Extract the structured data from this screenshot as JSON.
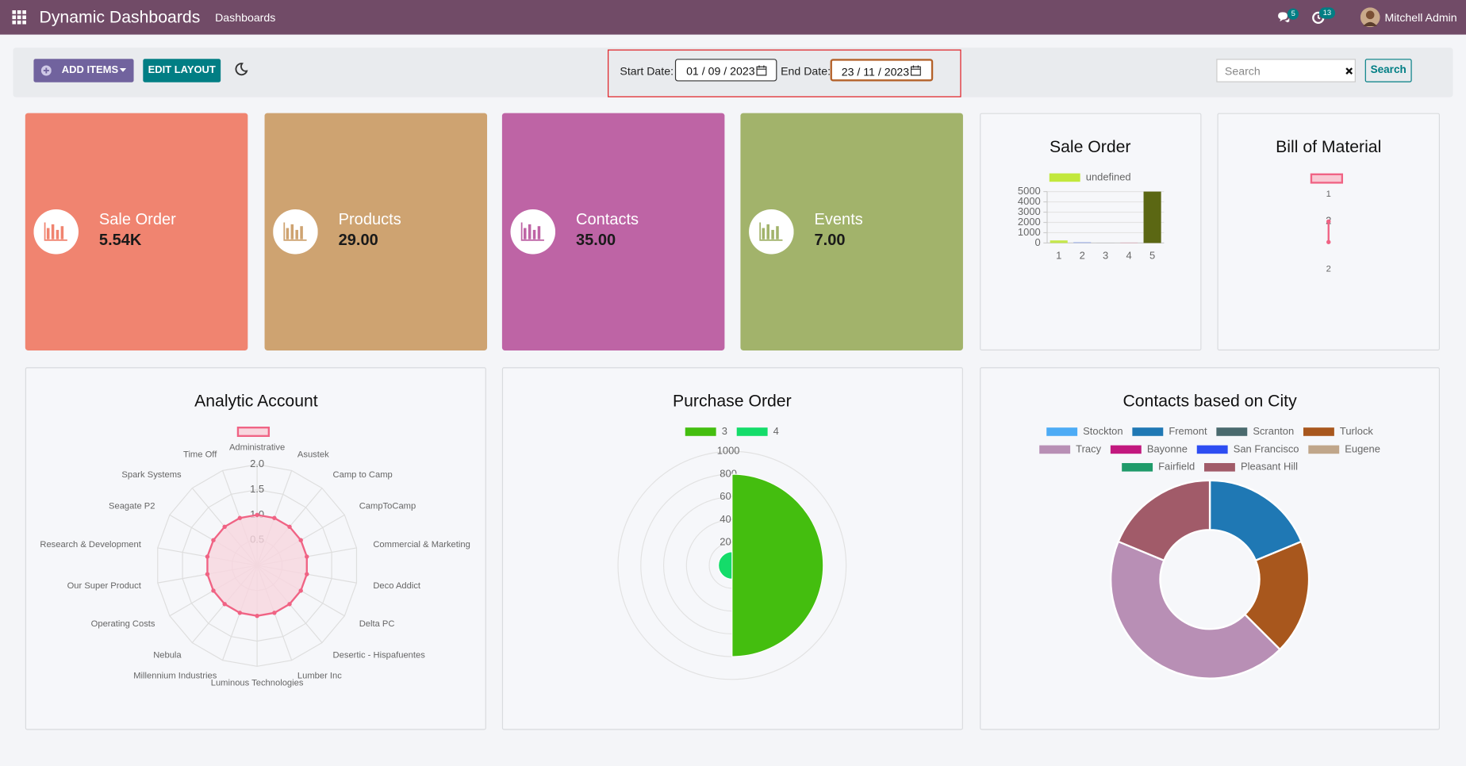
{
  "navbar": {
    "app_name": "Dynamic Dashboards",
    "menu": "Dashboards",
    "messages_count": 5,
    "activities_count": 13,
    "user": "Mitchell Admin"
  },
  "toolbar": {
    "add_items": "ADD ITEMS",
    "edit_layout": "EDIT LAYOUT",
    "start_date_label": "Start Date:",
    "start_date": "01 / 09 / 2023",
    "end_date_label": "End Date:",
    "end_date": "23 / 11 / 2023",
    "search_placeholder": "Search",
    "search_button": "Search"
  },
  "tiles": [
    {
      "title": "Sale Order",
      "value": "5.54K",
      "color": "#f08470"
    },
    {
      "title": "Products",
      "value": "29.00",
      "color": "#cea371"
    },
    {
      "title": "Contacts",
      "value": "35.00",
      "color": "#be64a5"
    },
    {
      "title": "Events",
      "value": "7.00",
      "color": "#a2b36b"
    }
  ],
  "chart_data": [
    {
      "type": "bar",
      "title": "Sale Order",
      "categories": [
        "1",
        "2",
        "3",
        "4",
        "5"
      ],
      "series": [
        {
          "name": "undefined",
          "color": "#c2e83c",
          "colors": [
            "#c5e84b",
            "#9fb2ea",
            "#bdbdbd",
            "#e9a3b6",
            "#5b6713"
          ],
          "values": [
            250,
            80,
            20,
            40,
            5000
          ]
        }
      ],
      "ylim": [
        0,
        5000
      ],
      "yticks": [
        0,
        1000,
        2000,
        3000,
        4000,
        5000
      ],
      "grid": true
    },
    {
      "type": "radar",
      "title": "Bill of Material",
      "categories": [
        "1",
        "2"
      ],
      "series": [
        {
          "color": "#f06384",
          "fill": "#f8c9d4",
          "values": [
            2,
            2
          ]
        }
      ],
      "rlim": [
        0,
        2
      ],
      "rticks": [
        2
      ]
    },
    {
      "type": "radar",
      "title": "Analytic Account",
      "categories": [
        "Administrative",
        "Asustek",
        "Camp to Camp",
        "CampToCamp",
        "Commercial & Marketing",
        "Deco Addict",
        "Delta PC",
        "Desertic - Hispafuentes",
        "Lumber Inc",
        "Luminous Technologies",
        "Millennium Industries",
        "Nebula",
        "Operating Costs",
        "Our Super Product",
        "Research & Development",
        "Seagate P2",
        "Spark Systems",
        "Time Off"
      ],
      "series": [
        {
          "color": "#f06384",
          "fill": "#f8d6de",
          "values": [
            1,
            1,
            1,
            1,
            1,
            1,
            1,
            1,
            1,
            1,
            1,
            1,
            1,
            1,
            1,
            1,
            1,
            1
          ]
        }
      ],
      "rlim": [
        0,
        2
      ],
      "rticks": [
        0.5,
        {
          "value": 1,
          "label": "1.0"
        },
        1.5,
        {
          "value": 2,
          "label": "2.0"
        }
      ]
    },
    {
      "type": "polarArea",
      "title": "Purchase Order",
      "categories": [
        "3",
        "4"
      ],
      "colors": [
        "#44be0f",
        "#14dc6a"
      ],
      "values": [
        800,
        120
      ],
      "rlim": [
        0,
        1000
      ],
      "rticks": [
        200,
        400,
        600,
        800,
        1000
      ]
    },
    {
      "type": "doughnut",
      "title": "Contacts based on City",
      "categories": [
        "Stockton",
        "Fremont",
        "Scranton",
        "Turlock",
        "Tracy",
        "Bayonne",
        "San Francisco",
        "Eugene",
        "Fairfield",
        "Pleasant Hill"
      ],
      "colors": [
        "#4dabf5",
        "#1f78b4",
        "#4a6a6e",
        "#a8571d",
        "#b88fb5",
        "#c2187e",
        "#2d4df2",
        "#c0a68a",
        "#1f9b6a",
        "#a15b69"
      ],
      "values": [
        0,
        3,
        0,
        3,
        7,
        0,
        0,
        0,
        0,
        3
      ]
    }
  ]
}
